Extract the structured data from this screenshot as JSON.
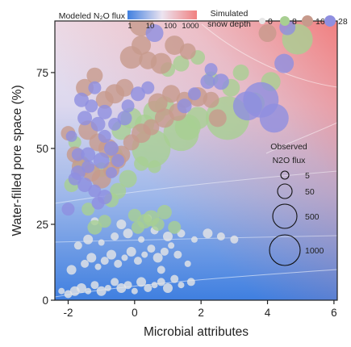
{
  "chart_data": {
    "type": "scatter",
    "xlabel": "Microbial attributes",
    "ylabel": "Water-filled pore space (%)",
    "xlim": [
      -2.4,
      6.1
    ],
    "ylim": [
      0,
      92
    ],
    "x_ticks": [
      "-2",
      "0",
      "2",
      "4",
      "6"
    ],
    "x_tick_values": [
      -2,
      0,
      2,
      4,
      6
    ],
    "y_ticks": [
      "0",
      "25",
      "50",
      "75"
    ],
    "y_tick_values": [
      0,
      25,
      50,
      75
    ],
    "background": {
      "title": "Modeled N₂O flux",
      "scale_labels": [
        "1",
        "10",
        "100",
        "1000"
      ],
      "scale": "log",
      "colors": [
        "#3f7fe0",
        "#ece4f0",
        "#f08080"
      ]
    },
    "snow_legend": {
      "title_line1": "Simulated",
      "title_line2": "snow depth",
      "values": [
        "0",
        "8",
        "16",
        "28"
      ],
      "colors": [
        "#e6e6e6",
        "#a8cf92",
        "#c79a8c",
        "#8f8fe0"
      ]
    },
    "size_legend": {
      "title_line1": "Observed",
      "title_line2": "N2O flux",
      "values": [
        "5",
        "50",
        "500",
        "1000"
      ]
    },
    "series": [
      {
        "name": "0",
        "color": "#e6e6e6",
        "points": [
          [
            -2.2,
            3,
            4
          ],
          [
            -2.0,
            2,
            5
          ],
          [
            -1.8,
            3,
            6
          ],
          [
            -1.6,
            4,
            6
          ],
          [
            -1.4,
            3,
            4
          ],
          [
            -1.2,
            5,
            5
          ],
          [
            -1.0,
            3,
            6
          ],
          [
            -0.8,
            4,
            4
          ],
          [
            -0.6,
            6,
            5
          ],
          [
            -0.4,
            4,
            6
          ],
          [
            -0.2,
            5,
            5
          ],
          [
            0.0,
            3,
            4
          ],
          [
            0.2,
            6,
            6
          ],
          [
            0.4,
            4,
            5
          ],
          [
            0.6,
            5,
            4
          ],
          [
            0.8,
            6,
            5
          ],
          [
            1.0,
            4,
            6
          ],
          [
            1.2,
            7,
            5
          ],
          [
            1.4,
            5,
            4
          ],
          [
            1.7,
            6,
            5
          ],
          [
            -1.9,
            10,
            6
          ],
          [
            -1.5,
            12,
            5
          ],
          [
            -1.3,
            14,
            6
          ],
          [
            -1.1,
            11,
            4
          ],
          [
            -0.9,
            13,
            5
          ],
          [
            -0.7,
            15,
            6
          ],
          [
            -0.5,
            12,
            5
          ],
          [
            -0.3,
            14,
            4
          ],
          [
            -0.1,
            16,
            6
          ],
          [
            0.1,
            13,
            5
          ],
          [
            0.3,
            15,
            4
          ],
          [
            0.5,
            17,
            5
          ],
          [
            0.7,
            14,
            6
          ],
          [
            0.9,
            16,
            5
          ],
          [
            1.1,
            18,
            4
          ],
          [
            1.3,
            15,
            5
          ],
          [
            -1.7,
            18,
            5
          ],
          [
            -1.4,
            20,
            6
          ],
          [
            -1.0,
            19,
            4
          ],
          [
            -0.6,
            21,
            5
          ],
          [
            -0.2,
            22,
            6
          ],
          [
            0.2,
            20,
            4
          ],
          [
            0.6,
            23,
            5
          ],
          [
            1.0,
            21,
            6
          ],
          [
            1.4,
            22,
            5
          ],
          [
            1.8,
            20,
            4
          ],
          [
            2.2,
            22,
            6
          ],
          [
            2.6,
            21,
            5
          ],
          [
            3.0,
            20,
            5
          ],
          [
            -1.2,
            26,
            5
          ],
          [
            -0.4,
            25,
            6
          ],
          [
            0.4,
            27,
            5
          ],
          [
            0.8,
            10,
            5
          ],
          [
            1.6,
            12,
            4
          ]
        ]
      },
      {
        "name": "8",
        "color": "#a8cf92",
        "points": [
          [
            -1.9,
            38,
            9
          ],
          [
            -1.6,
            45,
            10
          ],
          [
            -1.4,
            30,
            8
          ],
          [
            -1.2,
            24,
            9
          ],
          [
            -0.9,
            26,
            8
          ],
          [
            -0.7,
            33,
            9
          ],
          [
            -0.5,
            36,
            10
          ],
          [
            -0.2,
            40,
            11
          ],
          [
            0.0,
            28,
            8
          ],
          [
            0.1,
            24,
            8
          ],
          [
            0.3,
            26,
            9
          ],
          [
            0.5,
            27,
            10
          ],
          [
            0.7,
            25,
            8
          ],
          [
            0.9,
            29,
            9
          ],
          [
            1.2,
            24,
            8
          ],
          [
            -0.4,
            56,
            12
          ],
          [
            -0.1,
            60,
            13
          ],
          [
            0.3,
            58,
            12
          ],
          [
            0.6,
            62,
            14
          ],
          [
            0.9,
            64,
            12
          ],
          [
            0.5,
            50,
            24
          ],
          [
            1.4,
            55,
            22
          ],
          [
            1.6,
            57,
            16
          ],
          [
            1.9,
            60,
            14
          ],
          [
            2.8,
            60,
            27
          ],
          [
            2.9,
            70,
            11
          ],
          [
            3.2,
            75,
            10
          ],
          [
            3.6,
            65,
            13
          ],
          [
            4.1,
            72,
            12
          ],
          [
            4.9,
            86,
            19
          ],
          [
            1.0,
            76,
            9
          ],
          [
            1.4,
            78,
            10
          ],
          [
            1.9,
            80,
            9
          ],
          [
            2.3,
            73,
            9
          ],
          [
            -1.0,
            43,
            9
          ],
          [
            -0.6,
            48,
            10
          ],
          [
            0.2,
            45,
            9
          ],
          [
            0.6,
            44,
            8
          ],
          [
            -1.8,
            52,
            8
          ]
        ]
      },
      {
        "name": "16",
        "color": "#c79a8c",
        "points": [
          [
            -1.5,
            70,
            11
          ],
          [
            -1.2,
            74,
            10
          ],
          [
            -0.9,
            66,
            11
          ],
          [
            -0.6,
            68,
            12
          ],
          [
            -0.3,
            70,
            11
          ],
          [
            -0.1,
            80,
            14
          ],
          [
            0.2,
            84,
            12
          ],
          [
            0.4,
            79,
            11
          ],
          [
            0.8,
            78,
            13
          ],
          [
            1.2,
            84,
            12
          ],
          [
            1.6,
            82,
            10
          ],
          [
            0.2,
            91,
            15
          ],
          [
            0.7,
            65,
            12
          ],
          [
            1.1,
            68,
            11
          ],
          [
            1.5,
            66,
            10
          ],
          [
            1.9,
            67,
            12
          ],
          [
            -2.0,
            55,
            9
          ],
          [
            -1.8,
            48,
            10
          ],
          [
            -1.6,
            44,
            12
          ],
          [
            -1.3,
            42,
            11
          ],
          [
            -1.0,
            40,
            12
          ],
          [
            -0.7,
            43,
            10
          ],
          [
            -0.4,
            48,
            11
          ],
          [
            -0.1,
            52,
            10
          ],
          [
            0.2,
            55,
            12
          ],
          [
            0.5,
            57,
            10
          ],
          [
            0.9,
            60,
            12
          ],
          [
            1.3,
            62,
            11
          ],
          [
            -1.4,
            56,
            12
          ],
          [
            -1.1,
            52,
            11
          ],
          [
            -0.8,
            50,
            12
          ],
          [
            -0.5,
            46,
            10
          ],
          [
            2.5,
            60,
            11
          ],
          [
            2.3,
            66,
            10
          ],
          [
            4.0,
            88,
            11
          ]
        ]
      },
      {
        "name": "28",
        "color": "#8f8fe0",
        "points": [
          [
            -1.9,
            54,
            7
          ],
          [
            -1.7,
            48,
            8
          ],
          [
            -1.5,
            60,
            9
          ],
          [
            -1.3,
            64,
            8
          ],
          [
            -1.1,
            58,
            9
          ],
          [
            -0.9,
            54,
            8
          ],
          [
            -0.7,
            50,
            9
          ],
          [
            -0.5,
            46,
            8
          ],
          [
            -1.6,
            66,
            9
          ],
          [
            -1.2,
            70,
            8
          ],
          [
            -0.9,
            62,
            9
          ],
          [
            -0.6,
            58,
            8
          ],
          [
            -0.3,
            60,
            9
          ],
          [
            -1.8,
            40,
            8
          ],
          [
            -1.5,
            38,
            9
          ],
          [
            -1.2,
            36,
            8
          ],
          [
            -0.9,
            34,
            9
          ],
          [
            -1.1,
            32,
            8
          ],
          [
            -2.0,
            30,
            8
          ],
          [
            -1.7,
            42,
            9
          ],
          [
            -1.4,
            44,
            8
          ],
          [
            -0.7,
            42,
            7
          ],
          [
            -0.2,
            64,
            8
          ],
          [
            0.1,
            68,
            9
          ],
          [
            0.4,
            70,
            8
          ],
          [
            0.6,
            88,
            11
          ],
          [
            1.5,
            64,
            9
          ],
          [
            1.8,
            68,
            8
          ],
          [
            2.2,
            72,
            9
          ],
          [
            2.3,
            76,
            8
          ],
          [
            2.6,
            72,
            10
          ],
          [
            3.4,
            64,
            18
          ],
          [
            3.8,
            66,
            22
          ],
          [
            4.2,
            60,
            18
          ],
          [
            4.5,
            78,
            12
          ],
          [
            4.6,
            90,
            10
          ],
          [
            -1.4,
            48,
            9
          ],
          [
            -1.0,
            46,
            10
          ]
        ]
      }
    ]
  }
}
